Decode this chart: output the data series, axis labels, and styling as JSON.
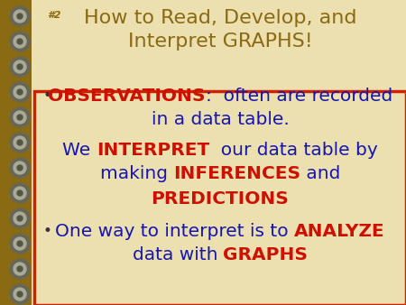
{
  "bg_outer": "#8B6A14",
  "bg_page": "#EDE0B0",
  "border_color": "#CC2200",
  "title_color": "#8B6A14",
  "title_line1": "How to Read, Develop, and",
  "title_line2": "Interpret GRAPHS!",
  "slide_num": "#2",
  "blue": "#1515B0",
  "red": "#CC1100",
  "figsize": [
    4.5,
    3.38
  ],
  "dpi": 100
}
